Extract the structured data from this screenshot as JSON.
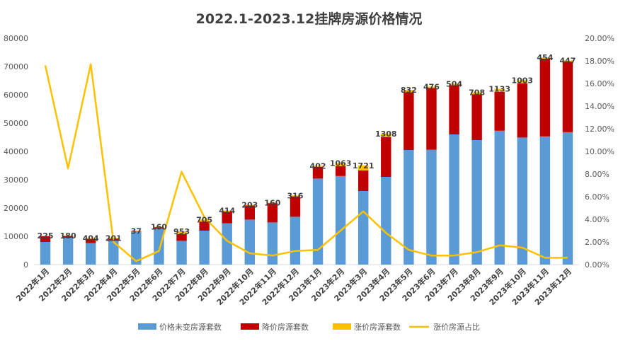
{
  "chart_data": {
    "type": "bar",
    "title": "2022.1-2023.12挂牌房源价格情况",
    "categories": [
      "2022年1月",
      "2022年2月",
      "2022年3月",
      "2022年4月",
      "2022年5月",
      "2022年6月",
      "2022年7月",
      "2022年8月",
      "2022年9月",
      "2022年10月",
      "2022年11月",
      "2022年12月",
      "2023年1月",
      "2023年2月",
      "2023年3月",
      "2023年4月",
      "2023年5月",
      "2023年6月",
      "2023年7月",
      "2023年8月",
      "2023年9月",
      "2023年10月",
      "2023年11月",
      "2023年12月"
    ],
    "stacked": true,
    "series": [
      {
        "name": "价格未变房源套数",
        "kind": "bar",
        "axis": "left",
        "color": "#5B9BD5",
        "values": [
          8000,
          9500,
          7600,
          8500,
          11800,
          12700,
          8400,
          12000,
          14600,
          15900,
          14900,
          16900,
          30400,
          31300,
          26000,
          31000,
          40500,
          40600,
          46000,
          44000,
          47300,
          44900,
          45300,
          46800
        ]
      },
      {
        "name": "降价房源套数",
        "kind": "bar",
        "axis": "left",
        "color": "#C00000",
        "values": [
          2000,
          600,
          1400,
          700,
          100,
          500,
          2400,
          3200,
          4100,
          5000,
          6800,
          7200,
          4100,
          3500,
          7300,
          14000,
          20400,
          21800,
          17400,
          16200,
          13700,
          19200,
          27500,
          24900
        ]
      },
      {
        "name": "涨价房源套数",
        "kind": "bar",
        "axis": "left",
        "color": "#FFC000",
        "values": [
          225,
          180,
          404,
          201,
          37,
          160,
          953,
          705,
          414,
          203,
          160,
          316,
          402,
          1063,
          1721,
          1308,
          832,
          476,
          504,
          708,
          1133,
          1003,
          454,
          447
        ],
        "labels": [
          "225",
          "180",
          "404",
          "201",
          "37",
          "160",
          "953",
          "705",
          "414",
          "203",
          "160",
          "316",
          "402",
          "1063",
          "1721",
          "1308",
          "832",
          "476",
          "504",
          "708",
          "1133",
          "1003",
          "454",
          "447"
        ]
      },
      {
        "name": "涨价房源占比",
        "kind": "line",
        "axis": "right",
        "color": "#FFC000",
        "values": [
          0.176,
          0.085,
          0.177,
          0.02,
          0.003,
          0.012,
          0.082,
          0.042,
          0.021,
          0.01,
          0.008,
          0.012,
          0.013,
          0.03,
          0.047,
          0.028,
          0.013,
          0.008,
          0.008,
          0.011,
          0.017,
          0.015,
          0.006,
          0.006
        ]
      }
    ],
    "y_left": {
      "min": 0,
      "max": 80000,
      "ticks": [
        "0",
        "10000",
        "20000",
        "30000",
        "40000",
        "50000",
        "60000",
        "70000",
        "80000"
      ]
    },
    "y_right": {
      "min": 0,
      "max": 0.2,
      "ticks": [
        "0.00%",
        "2.00%",
        "4.00%",
        "6.00%",
        "8.00%",
        "10.00%",
        "12.00%",
        "14.00%",
        "16.00%",
        "18.00%",
        "20.00%"
      ]
    },
    "grid": false,
    "legend": "bottom"
  }
}
